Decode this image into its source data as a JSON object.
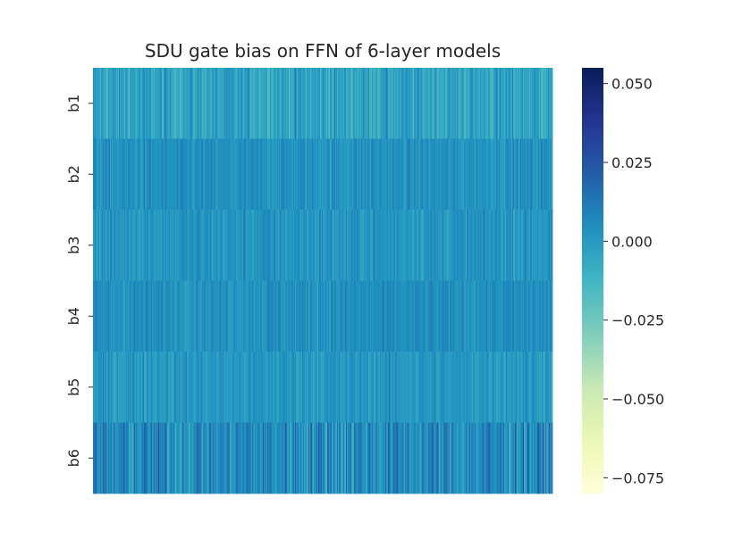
{
  "chart_data": {
    "type": "heatmap",
    "title": "SDU gate bias on FFN of 6-layer models",
    "xlabel": "",
    "ylabel": "",
    "rows": [
      "b1",
      "b2",
      "b3",
      "b4",
      "b5",
      "b6"
    ],
    "x_tick_labels": [],
    "columns_per_row": 512,
    "colormap": "YlGnBu",
    "colorbar": {
      "vmin": -0.08,
      "vmax": 0.055,
      "ticks": [
        0.05,
        0.025,
        0.0,
        -0.025,
        -0.05,
        -0.075
      ],
      "tick_labels": [
        "0.050",
        "0.025",
        "0.000",
        "−0.025",
        "−0.050",
        "−0.075"
      ]
    },
    "row_value_profile": [
      {
        "row": "b1",
        "mean": -0.004,
        "spread": 0.01
      },
      {
        "row": "b2",
        "mean": 0.003,
        "spread": 0.006
      },
      {
        "row": "b3",
        "mean": 0.002,
        "spread": 0.007
      },
      {
        "row": "b4",
        "mean": 0.004,
        "spread": 0.006
      },
      {
        "row": "b5",
        "mean": 0.001,
        "spread": 0.007
      },
      {
        "row": "b6",
        "mean": 0.006,
        "spread": 0.014
      }
    ]
  }
}
